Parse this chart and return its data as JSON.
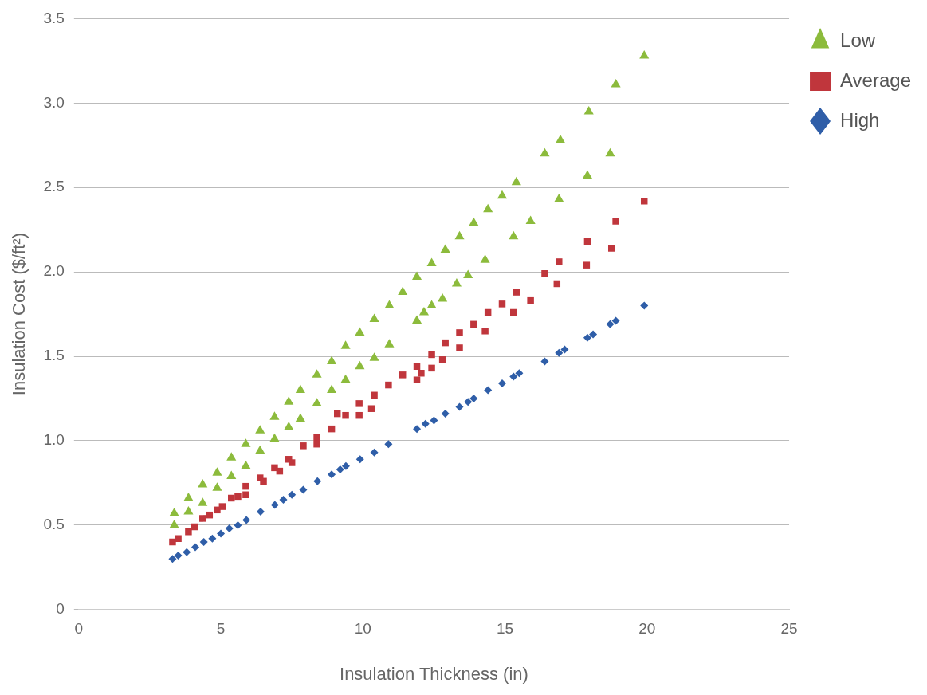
{
  "chart_data": {
    "type": "scatter",
    "xlabel": "Insulation Thickness (in)",
    "ylabel": "Insulation Cost ($/ft²)",
    "xlim": [
      0,
      25
    ],
    "xticks": [
      0,
      5,
      10,
      15,
      20,
      25
    ],
    "ylim": [
      0,
      3.5
    ],
    "yticks": [
      0,
      {
        "value": 0.5,
        "label": "0.5"
      },
      {
        "value": 1.0,
        "label": "1.0"
      },
      {
        "value": 1.5,
        "label": "1.5"
      },
      {
        "value": 2.0,
        "label": "2.0"
      },
      {
        "value": 2.5,
        "label": "2.5"
      },
      {
        "value": 3.0,
        "label": "3.0"
      },
      {
        "value": 3.5,
        "label": "3.5"
      }
    ],
    "grid": "y",
    "legend": "top right",
    "series": [
      {
        "name": "Low",
        "color": "#8cbb3c",
        "marker": "triangle",
        "x": [
          3.36,
          3.36,
          3.86,
          3.86,
          4.36,
          4.36,
          4.87,
          4.87,
          5.37,
          5.37,
          5.88,
          5.88,
          6.38,
          6.38,
          6.89,
          6.89,
          7.39,
          7.39,
          7.8,
          7.8,
          8.38,
          8.38,
          8.9,
          8.9,
          9.39,
          9.39,
          9.89,
          9.89,
          10.4,
          10.4,
          10.93,
          10.93,
          11.4,
          11.9,
          11.9,
          12.15,
          12.42,
          12.42,
          12.9,
          12.8,
          13.4,
          13.3,
          13.9,
          13.7,
          14.4,
          14.3,
          14.9,
          15.4,
          15.3,
          15.9,
          16.4,
          16.9,
          16.95,
          17.9,
          17.95,
          18.7,
          18.9,
          19.9
        ],
        "values": [
          0.57,
          0.5,
          0.66,
          0.58,
          0.74,
          0.63,
          0.81,
          0.72,
          0.9,
          0.79,
          0.98,
          0.85,
          1.06,
          0.94,
          1.14,
          1.01,
          1.23,
          1.08,
          1.3,
          1.13,
          1.39,
          1.22,
          1.47,
          1.3,
          1.56,
          1.36,
          1.64,
          1.44,
          1.72,
          1.49,
          1.8,
          1.57,
          1.88,
          1.97,
          1.71,
          1.76,
          2.05,
          1.8,
          2.13,
          1.84,
          2.21,
          1.93,
          2.29,
          1.98,
          2.37,
          2.07,
          2.45,
          2.53,
          2.21,
          2.3,
          2.7,
          2.43,
          2.78,
          2.57,
          2.95,
          2.7,
          3.11,
          3.28
        ]
      },
      {
        "name": "Average",
        "color": "#c0363c",
        "marker": "square",
        "x": [
          3.3,
          3.5,
          3.86,
          4.07,
          4.36,
          4.6,
          4.87,
          5.05,
          5.37,
          5.6,
          5.88,
          5.88,
          6.38,
          6.5,
          6.89,
          7.07,
          7.39,
          7.5,
          7.9,
          8.38,
          8.38,
          8.9,
          9.1,
          9.39,
          9.87,
          9.87,
          10.4,
          10.3,
          10.9,
          11.4,
          11.9,
          11.9,
          12.05,
          12.42,
          12.42,
          12.9,
          12.8,
          13.4,
          13.4,
          13.9,
          14.3,
          14.4,
          14.9,
          15.4,
          15.3,
          15.9,
          16.4,
          16.9,
          16.83,
          17.9,
          17.87,
          18.75,
          18.9,
          19.9
        ],
        "values": [
          0.4,
          0.42,
          0.46,
          0.49,
          0.54,
          0.56,
          0.59,
          0.61,
          0.66,
          0.67,
          0.73,
          0.68,
          0.78,
          0.76,
          0.84,
          0.82,
          0.89,
          0.87,
          0.97,
          1.02,
          0.98,
          1.07,
          1.16,
          1.15,
          1.22,
          1.15,
          1.27,
          1.19,
          1.33,
          1.39,
          1.44,
          1.36,
          1.4,
          1.51,
          1.43,
          1.58,
          1.48,
          1.64,
          1.55,
          1.69,
          1.65,
          1.76,
          1.81,
          1.88,
          1.76,
          1.83,
          1.99,
          2.06,
          1.93,
          2.18,
          2.04,
          2.14,
          2.3,
          2.42
        ]
      },
      {
        "name": "High",
        "color": "#2f5ea8",
        "marker": "diamond",
        "x": [
          3.3,
          3.5,
          3.8,
          4.1,
          4.4,
          4.7,
          5.0,
          5.3,
          5.6,
          5.9,
          6.4,
          6.9,
          7.2,
          7.5,
          7.9,
          8.4,
          8.9,
          9.2,
          9.4,
          9.9,
          10.4,
          10.9,
          11.9,
          12.2,
          12.5,
          12.9,
          13.4,
          13.7,
          13.9,
          14.4,
          14.9,
          15.3,
          15.5,
          16.4,
          16.9,
          17.1,
          17.9,
          18.1,
          18.7,
          18.9,
          19.9
        ],
        "values": [
          0.3,
          0.32,
          0.34,
          0.37,
          0.4,
          0.42,
          0.45,
          0.48,
          0.5,
          0.53,
          0.58,
          0.62,
          0.65,
          0.68,
          0.71,
          0.76,
          0.8,
          0.83,
          0.85,
          0.89,
          0.93,
          0.98,
          1.07,
          1.1,
          1.12,
          1.16,
          1.2,
          1.23,
          1.25,
          1.3,
          1.34,
          1.38,
          1.4,
          1.47,
          1.52,
          1.54,
          1.61,
          1.63,
          1.69,
          1.71,
          1.8
        ]
      }
    ]
  }
}
